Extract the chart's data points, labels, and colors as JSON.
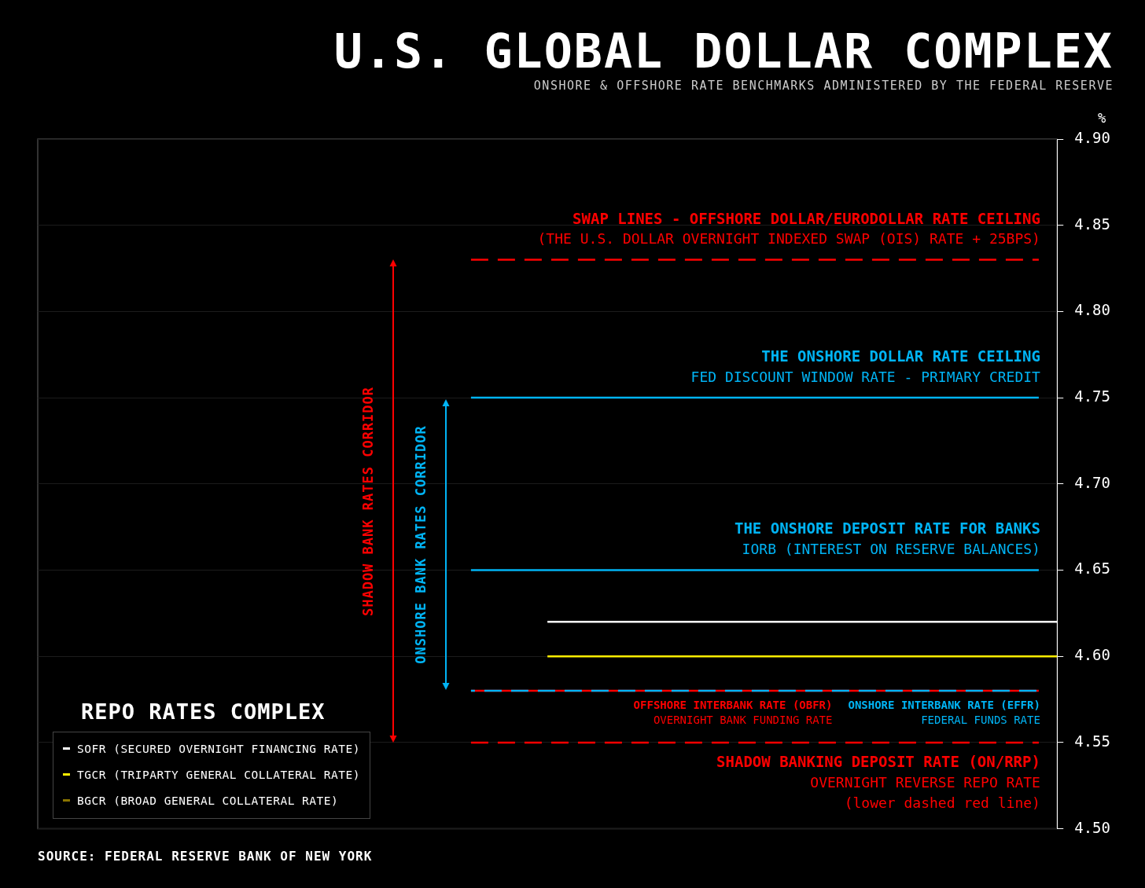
{
  "chart_data": {
    "type": "line",
    "title": "U.S. GLOBAL DOLLAR COMPLEX",
    "subtitle": "ONSHORE & OFFSHORE RATE BENCHMARKS ADMINISTERED BY THE FEDERAL RESERVE",
    "ylabel": "%",
    "legend_title": "REPO RATES COMPLEX",
    "categories": [
      null,
      null,
      null,
      null,
      null,
      null,
      null
    ],
    "series": [
      {
        "name": "SOFR (SECURED OVERNIGHT FINANCING RATE)",
        "color": "#ffffff",
        "values": [
          null,
          null,
          null,
          4.62,
          4.62,
          4.62,
          4.62
        ]
      },
      {
        "name": "BGCR (BROAD GENERAL COLLATERAL RATE)",
        "color": "#8a7400",
        "values": [
          null,
          null,
          null,
          null,
          null,
          null,
          null
        ]
      },
      {
        "name": "TGCR (TRIPARTY GENERAL COLLATERAL RATE)",
        "color": "#ffee00",
        "values": [
          null,
          null,
          null,
          4.6,
          4.6,
          4.6,
          4.6
        ]
      }
    ],
    "ylim": [
      4.5,
      4.9
    ],
    "yticks": [
      {
        "value": 4.5,
        "label": "4.50"
      },
      4.55,
      {
        "value": 4.6,
        "label": "4.60"
      },
      4.65,
      {
        "value": 4.7,
        "label": "4.70"
      },
      4.75,
      {
        "value": 4.8,
        "label": "4.80"
      },
      4.85,
      {
        "value": 4.9,
        "label": "4.90"
      }
    ],
    "grid": "y",
    "legend": "bottom left",
    "tick_labels": "y",
    "ref_lines": [
      {
        "axis": "y",
        "value": 4.83,
        "label": "SWAP LINES - OFFSHORE DOLLAR/EURODOLLAR RATE CEILING",
        "color": "#ff0000",
        "line_style": "dashed"
      },
      {
        "axis": "y",
        "value": 4.75,
        "label": "THE ONSHORE DOLLAR RATE CEILING",
        "color": "#00b4f5",
        "line_style": "solid"
      },
      {
        "axis": "y",
        "value": 4.65,
        "label": "THE ONSHORE DEPOSIT RATE FOR BANKS",
        "color": "#00b4f5",
        "line_style": "solid"
      },
      {
        "axis": "y",
        "value": 4.58,
        "label": "OFFSHORE INTERBANK RATE (OBFR)",
        "color": "#ff0000",
        "line_style": "solid"
      },
      {
        "axis": "y",
        "value": 4.58,
        "label": "ONSHORE INTERBANK RATE (EFFR)",
        "color": "#00b4f5",
        "line_style": "dashed"
      },
      {
        "axis": "y",
        "value": 4.55,
        "label": "SHADOW BANKING DEPOSIT RATE (ON/RRP)",
        "color": "#ff0000",
        "line_style": "dashed"
      }
    ],
    "annotations": [
      {
        "text": "(THE U.S. DOLLAR OVERNIGHT INDEXED SWAP (OIS) RATE + 25BPS)",
        "y": 4.83
      },
      {
        "text": "FED DISCOUNT WINDOW RATE - PRIMARY CREDIT",
        "y": 4.75
      },
      {
        "text": "IORB (INTEREST ON RESERVE BALANCES)",
        "y": 4.65
      },
      {
        "text": "OVERNIGHT BANK FUNDING RATE",
        "y": 4.58
      },
      {
        "text": "FEDERAL FUNDS RATE",
        "y": 4.58
      },
      {
        "text": "OVERNIGHT REVERSE REPO RATE",
        "y": 4.55
      },
      "SHADOW BANK RATES CORRIDOR",
      "ONSHORE BANK RATES CORRIDOR",
      "(lower dashed red line)",
      "SOURCE: FEDERAL RESERVE BANK OF NEW YORK"
    ]
  }
}
